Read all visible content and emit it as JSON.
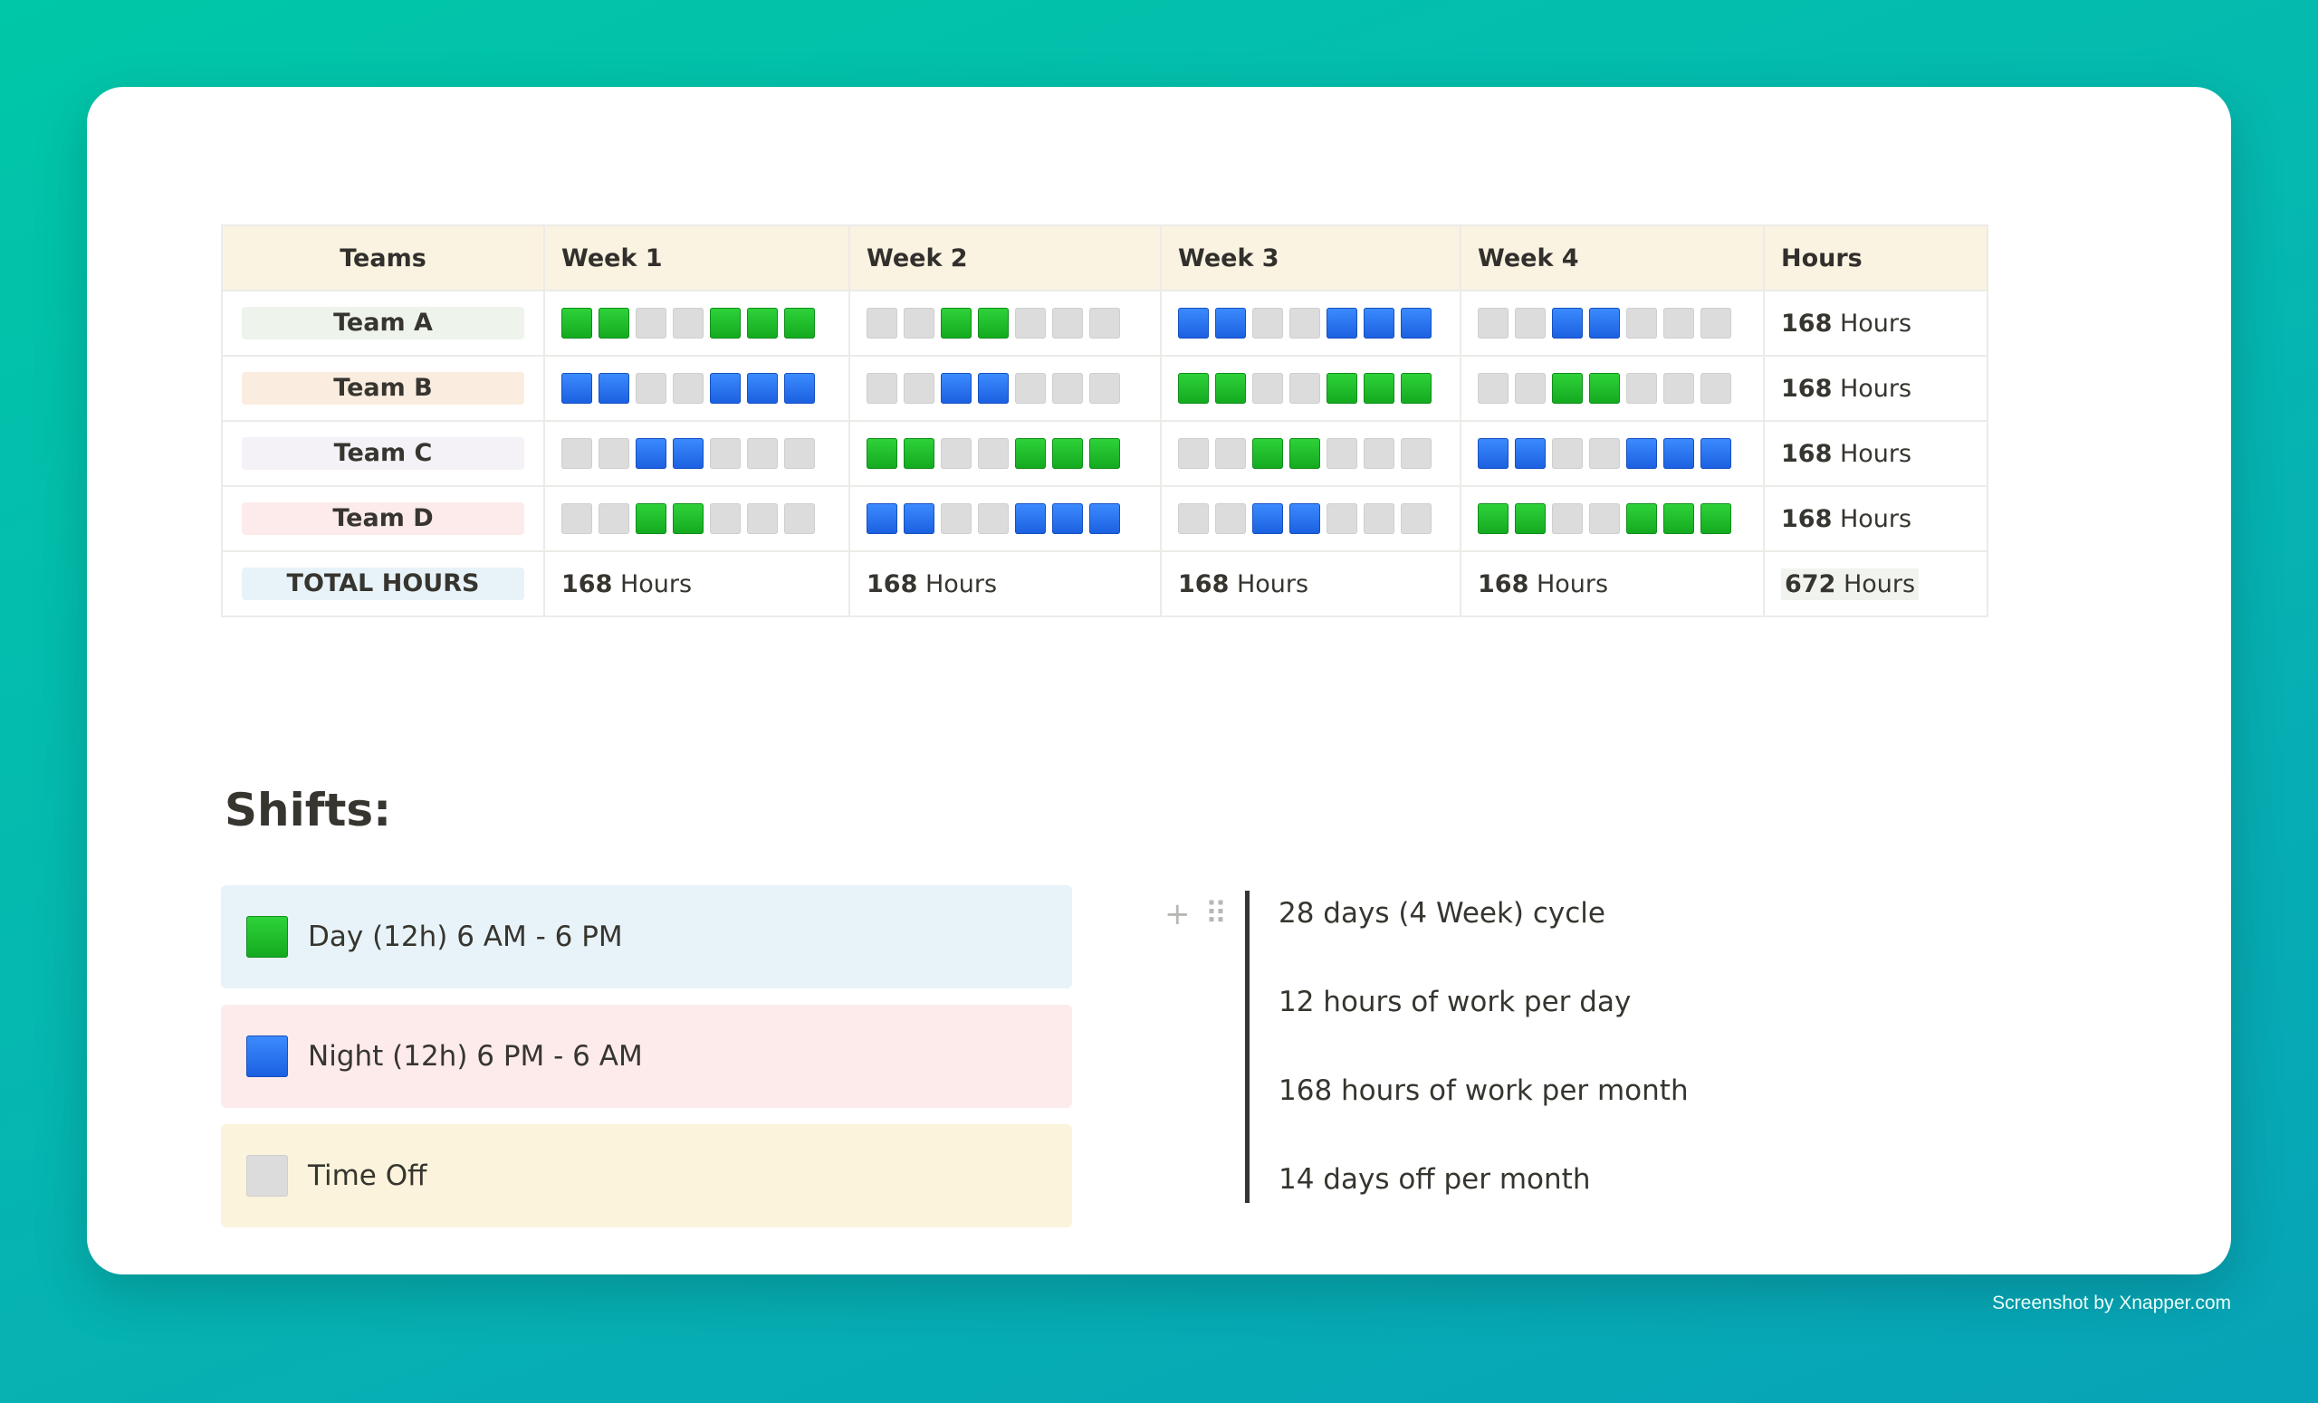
{
  "table": {
    "headers": [
      "Teams",
      "Week 1",
      "Week 2",
      "Week 3",
      "Week 4",
      "Hours"
    ],
    "rows": [
      {
        "team": "Team A",
        "pill_color": "#eef4ec",
        "weeks": [
          [
            "D",
            "D",
            "O",
            "O",
            "D",
            "D",
            "D"
          ],
          [
            "O",
            "O",
            "D",
            "D",
            "O",
            "O",
            "O"
          ],
          [
            "N",
            "N",
            "O",
            "O",
            "N",
            "N",
            "N"
          ],
          [
            "O",
            "O",
            "N",
            "N",
            "O",
            "O",
            "O"
          ]
        ],
        "hours_value": "168",
        "hours_unit": "Hours"
      },
      {
        "team": "Team B",
        "pill_color": "#fbece0",
        "weeks": [
          [
            "N",
            "N",
            "O",
            "O",
            "N",
            "N",
            "N"
          ],
          [
            "O",
            "O",
            "N",
            "N",
            "O",
            "O",
            "O"
          ],
          [
            "D",
            "D",
            "O",
            "O",
            "D",
            "D",
            "D"
          ],
          [
            "O",
            "O",
            "D",
            "D",
            "O",
            "O",
            "O"
          ]
        ],
        "hours_value": "168",
        "hours_unit": "Hours"
      },
      {
        "team": "Team C",
        "pill_color": "#f4f2f6",
        "weeks": [
          [
            "O",
            "O",
            "N",
            "N",
            "O",
            "O",
            "O"
          ],
          [
            "D",
            "D",
            "O",
            "O",
            "D",
            "D",
            "D"
          ],
          [
            "O",
            "O",
            "D",
            "D",
            "O",
            "O",
            "O"
          ],
          [
            "N",
            "N",
            "O",
            "O",
            "N",
            "N",
            "N"
          ]
        ],
        "hours_value": "168",
        "hours_unit": "Hours"
      },
      {
        "team": "Team D",
        "pill_color": "#fdebeb",
        "weeks": [
          [
            "O",
            "O",
            "D",
            "D",
            "O",
            "O",
            "O"
          ],
          [
            "N",
            "N",
            "O",
            "O",
            "N",
            "N",
            "N"
          ],
          [
            "O",
            "O",
            "N",
            "N",
            "O",
            "O",
            "O"
          ],
          [
            "D",
            "D",
            "O",
            "O",
            "D",
            "D",
            "D"
          ]
        ],
        "hours_value": "168",
        "hours_unit": "Hours"
      }
    ],
    "total": {
      "label": "TOTAL HOURS",
      "pill_color": "#e7f3f8",
      "weeks": [
        {
          "value": "168",
          "unit": "Hours"
        },
        {
          "value": "168",
          "unit": "Hours"
        },
        {
          "value": "168",
          "unit": "Hours"
        },
        {
          "value": "168",
          "unit": "Hours"
        }
      ],
      "grand": {
        "value": "672",
        "unit": "Hours"
      }
    }
  },
  "shifts": {
    "heading": "Shifts:",
    "legend": [
      {
        "key": "D",
        "label": "Day (12h) 6 AM - 6 PM",
        "bg": "#e7f3f8",
        "icon": "green-square-icon"
      },
      {
        "key": "N",
        "label": "Night (12h) 6 PM - 6 AM",
        "bg": "#fdebec",
        "icon": "blue-square-icon"
      },
      {
        "key": "O",
        "label": "Time Off",
        "bg": "#fbf3db",
        "icon": "gray-square-icon"
      }
    ],
    "notes": [
      "28 days (4 Week) cycle",
      "12 hours of work per day",
      "168 hours of work per month",
      "14 days off per month"
    ],
    "handle_plus": "+",
    "handle_drag": "⠿"
  },
  "colors": {
    "day": "#13a91f",
    "night": "#1a5fe0",
    "off": "#dcdcdc"
  },
  "credit": "Screenshot by Xnapper.com"
}
